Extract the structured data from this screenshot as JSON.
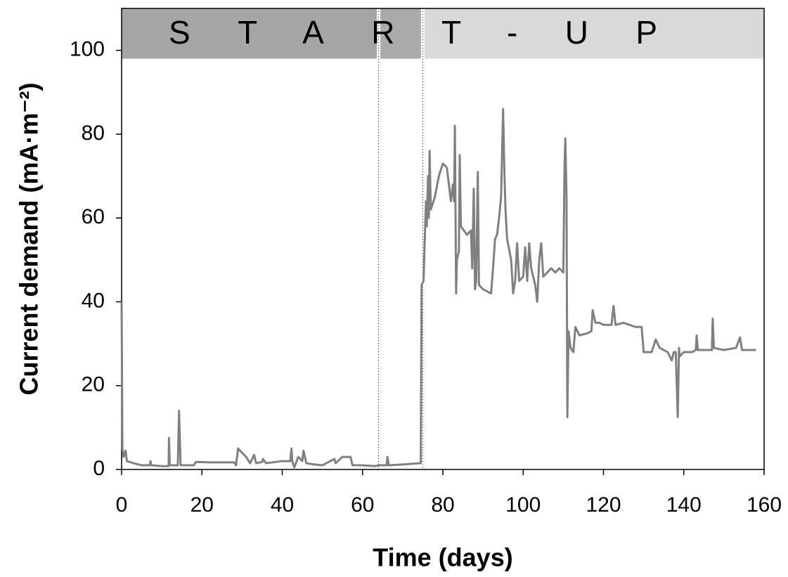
{
  "chart_data": {
    "type": "line",
    "xlabel": "Time (days)",
    "ylabel": "Current demand (mA·m⁻²)",
    "phase_label": "START-UP",
    "phases": [
      {
        "start": 0,
        "end": 64,
        "color": "#a6a6a6"
      },
      {
        "start": 64,
        "end": 75,
        "color": "#ababab"
      },
      {
        "start": 75,
        "end": 160,
        "color": "#d9d9d9"
      }
    ],
    "band_ylim": [
      98,
      110
    ],
    "xlim": [
      0,
      160
    ],
    "ylim": [
      0,
      110
    ],
    "xticks": [
      0,
      20,
      40,
      60,
      80,
      100,
      120,
      140,
      160
    ],
    "yticks": [
      0,
      20,
      40,
      60,
      80,
      100
    ],
    "color": "#808080",
    "x": [
      0,
      0.2,
      0.5,
      1,
      1.3,
      3,
      5,
      7,
      7.2,
      7.4,
      10,
      11.7,
      11.8,
      12,
      14,
      14.3,
      14.7,
      16,
      18,
      18.5,
      22,
      28,
      28.5,
      29,
      31,
      32,
      33,
      33.5,
      35,
      35.2,
      36,
      40,
      42,
      42.3,
      42.5,
      43,
      44,
      45,
      45.3,
      46,
      48,
      50,
      52,
      53,
      53.3,
      55,
      57,
      57.5,
      60,
      63,
      64,
      66,
      66.2,
      66.5,
      70,
      74.5,
      74.7,
      75.2,
      75.5,
      75.8,
      76,
      76.3,
      76.5,
      76.7,
      77,
      78,
      79,
      80,
      81,
      81.5,
      82,
      82.5,
      82.8,
      83,
      83.3,
      83.5,
      84,
      84.2,
      84.5,
      86,
      87,
      87.3,
      87.7,
      88,
      88.3,
      88.7,
      89,
      90,
      92,
      92.5,
      93,
      93.5,
      94,
      94.5,
      95,
      95.3,
      95.6,
      96,
      97,
      97.5,
      98,
      98.5,
      99,
      100,
      100.5,
      101,
      101.5,
      102,
      103,
      103.5,
      104,
      104.5,
      105,
      106,
      107,
      108,
      109,
      110,
      110.3,
      110.5,
      110.8,
      111,
      111.3,
      111.8,
      112.5,
      113,
      114,
      116,
      117,
      117.3,
      118,
      119,
      120,
      122,
      122.5,
      123,
      125,
      128,
      129.5,
      130,
      132,
      133,
      134,
      136,
      137,
      137.5,
      138,
      138.5,
      138.8,
      139,
      140,
      141,
      142,
      143,
      143.2,
      143.5,
      146,
      147,
      147.2,
      147.5,
      150,
      153,
      154,
      154.5,
      158
    ],
    "values": [
      40,
      5,
      3,
      4.5,
      2,
      1.5,
      1,
      1,
      2,
      1,
      0.8,
      0.8,
      7.5,
      1,
      1,
      14,
      1,
      1,
      1,
      1.8,
      1.7,
      1.7,
      1,
      5,
      3,
      1.5,
      3.5,
      1.5,
      1.8,
      2.5,
      1.5,
      2,
      2,
      5,
      2,
      0.5,
      3,
      2,
      4.5,
      1.5,
      1.2,
      1,
      2,
      2.5,
      1.5,
      3,
      3,
      1,
      1,
      0.8,
      1,
      1,
      3,
      1,
      1.2,
      1.5,
      44,
      45,
      55,
      64,
      58,
      70,
      60,
      76,
      62,
      65,
      70,
      73,
      72,
      68,
      64,
      68,
      64,
      82,
      42,
      50,
      52,
      75,
      58,
      56,
      57,
      48,
      67,
      43,
      45,
      71,
      44,
      43,
      42,
      48,
      55,
      56,
      60,
      65,
      86,
      72,
      62,
      55,
      50,
      42,
      45,
      54,
      45,
      46,
      53,
      45,
      54,
      48,
      44,
      40,
      50,
      54,
      46,
      47,
      48,
      47,
      48,
      47,
      72,
      79,
      65,
      12.5,
      33,
      29,
      28,
      34,
      32,
      32.5,
      33,
      38,
      35,
      35,
      34.5,
      34.5,
      39,
      34.5,
      35,
      34,
      34,
      28,
      28,
      31,
      29,
      28,
      26,
      28,
      28,
      12.5,
      29,
      27,
      28,
      28,
      28,
      28.5,
      32,
      28.5,
      28.5,
      28.5,
      36,
      29,
      28.5,
      29,
      31.5,
      28.5,
      28.5
    ]
  }
}
